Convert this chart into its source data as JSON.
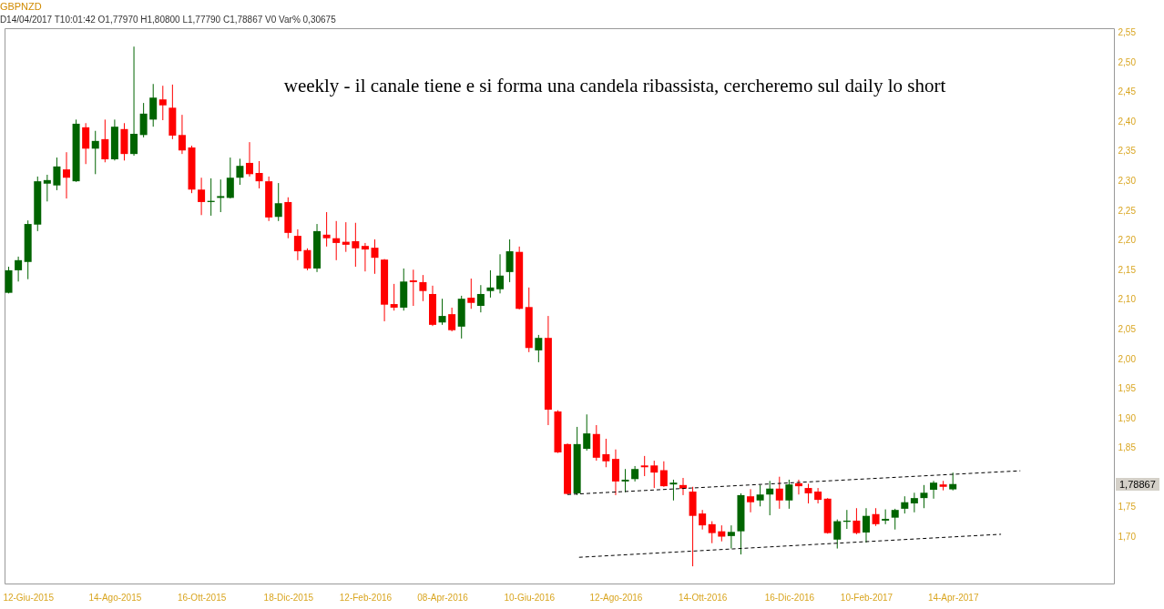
{
  "chart_data": {
    "type": "candlestick",
    "title": "GBPNZD",
    "subtitle": "D14/04/2017 T10:01:42 O1,77970 H1,80800 L1,77790 C1,78867 V0 Var% 0,30675",
    "annotations": [
      "weekly - il canale tiene e si forma una candela ribassista, cercheremo sul daily lo short",
      "1,78867"
    ],
    "x": [
      "2015-05-29",
      "2015-06-05",
      "2015-06-12",
      "2015-06-19",
      "2015-06-26",
      "2015-07-03",
      "2015-07-10",
      "2015-07-17",
      "2015-07-24",
      "2015-07-31",
      "2015-08-07",
      "2015-08-14",
      "2015-08-21",
      "2015-08-28",
      "2015-09-04",
      "2015-09-11",
      "2015-09-18",
      "2015-09-25",
      "2015-10-02",
      "2015-10-09",
      "2015-10-16",
      "2015-10-23",
      "2015-10-30",
      "2015-11-06",
      "2015-11-13",
      "2015-11-20",
      "2015-11-27",
      "2015-12-04",
      "2015-12-11",
      "2015-12-18",
      "2015-12-25",
      "2016-01-01",
      "2016-01-08",
      "2016-01-15",
      "2016-01-22",
      "2016-01-29",
      "2016-02-05",
      "2016-02-12",
      "2016-02-19",
      "2016-02-26",
      "2016-03-04",
      "2016-03-11",
      "2016-03-18",
      "2016-03-25",
      "2016-04-01",
      "2016-04-08",
      "2016-04-15",
      "2016-04-22",
      "2016-04-29",
      "2016-05-06",
      "2016-05-13",
      "2016-05-20",
      "2016-05-27",
      "2016-06-03",
      "2016-06-10",
      "2016-06-17",
      "2016-06-24",
      "2016-07-01",
      "2016-07-08",
      "2016-07-15",
      "2016-07-22",
      "2016-07-29",
      "2016-08-05",
      "2016-08-12",
      "2016-08-19",
      "2016-08-26",
      "2016-09-02",
      "2016-09-09",
      "2016-09-16",
      "2016-09-23",
      "2016-09-30",
      "2016-10-07",
      "2016-10-14",
      "2016-10-21",
      "2016-10-28",
      "2016-11-04",
      "2016-11-11",
      "2016-11-18",
      "2016-11-25",
      "2016-12-02",
      "2016-12-09",
      "2016-12-16",
      "2016-12-23",
      "2016-12-30",
      "2017-01-06",
      "2017-01-13",
      "2017-01-20",
      "2017-01-27",
      "2017-02-03",
      "2017-02-10",
      "2017-02-17",
      "2017-02-24",
      "2017-03-03",
      "2017-03-10",
      "2017-03-17",
      "2017-03-24",
      "2017-03-31",
      "2017-04-07",
      "2017-04-14"
    ],
    "ohlc": [
      [
        2.111,
        2.155,
        2.11,
        2.149
      ],
      [
        2.149,
        2.172,
        2.13,
        2.166
      ],
      [
        2.163,
        2.233,
        2.134,
        2.227
      ],
      [
        2.226,
        2.307,
        2.215,
        2.299
      ],
      [
        2.295,
        2.31,
        2.265,
        2.301
      ],
      [
        2.292,
        2.339,
        2.284,
        2.324
      ],
      [
        2.319,
        2.348,
        2.27,
        2.305
      ],
      [
        2.299,
        2.403,
        2.298,
        2.396
      ],
      [
        2.39,
        2.397,
        2.328,
        2.354
      ],
      [
        2.354,
        2.384,
        2.311,
        2.367
      ],
      [
        2.37,
        2.403,
        2.331,
        2.336
      ],
      [
        2.336,
        2.403,
        2.334,
        2.391
      ],
      [
        2.387,
        2.397,
        2.334,
        2.345
      ],
      [
        2.345,
        2.526,
        2.342,
        2.379
      ],
      [
        2.377,
        2.431,
        2.373,
        2.413
      ],
      [
        2.403,
        2.463,
        2.391,
        2.44
      ],
      [
        2.437,
        2.46,
        2.402,
        2.427
      ],
      [
        2.423,
        2.462,
        2.37,
        2.376
      ],
      [
        2.377,
        2.411,
        2.345,
        2.351
      ],
      [
        2.356,
        2.359,
        2.279,
        2.285
      ],
      [
        2.285,
        2.305,
        2.242,
        2.264
      ],
      [
        2.264,
        2.304,
        2.241,
        2.266
      ],
      [
        2.271,
        2.302,
        2.247,
        2.274
      ],
      [
        2.271,
        2.339,
        2.27,
        2.305
      ],
      [
        2.305,
        2.337,
        2.293,
        2.325
      ],
      [
        2.33,
        2.365,
        2.307,
        2.311
      ],
      [
        2.313,
        2.333,
        2.287,
        2.299
      ],
      [
        2.299,
        2.307,
        2.232,
        2.238
      ],
      [
        2.239,
        2.296,
        2.232,
        2.262
      ],
      [
        2.264,
        2.272,
        2.203,
        2.212
      ],
      [
        2.207,
        2.218,
        2.166,
        2.181
      ],
      [
        2.183,
        2.186,
        2.149,
        2.152
      ],
      [
        2.152,
        2.227,
        2.146,
        2.215
      ],
      [
        2.209,
        2.247,
        2.189,
        2.203
      ],
      [
        2.203,
        2.232,
        2.166,
        2.195
      ],
      [
        2.197,
        2.23,
        2.18,
        2.192
      ],
      [
        2.198,
        2.229,
        2.155,
        2.186
      ],
      [
        2.19,
        2.195,
        2.147,
        2.184
      ],
      [
        2.187,
        2.201,
        2.143,
        2.17
      ],
      [
        2.167,
        2.168,
        2.063,
        2.091
      ],
      [
        2.092,
        2.126,
        2.081,
        2.086
      ],
      [
        2.086,
        2.152,
        2.081,
        2.13
      ],
      [
        2.132,
        2.15,
        2.089,
        2.129
      ],
      [
        2.129,
        2.141,
        2.097,
        2.114
      ],
      [
        2.109,
        2.123,
        2.055,
        2.057
      ],
      [
        2.061,
        2.101,
        2.057,
        2.072
      ],
      [
        2.075,
        2.086,
        2.046,
        2.048
      ],
      [
        2.054,
        2.106,
        2.034,
        2.101
      ],
      [
        2.103,
        2.135,
        2.084,
        2.094
      ],
      [
        2.089,
        2.124,
        2.078,
        2.109
      ],
      [
        2.114,
        2.149,
        2.103,
        2.12
      ],
      [
        2.117,
        2.176,
        2.11,
        2.14
      ],
      [
        2.146,
        2.201,
        2.129,
        2.181
      ],
      [
        2.18,
        2.189,
        2.083,
        2.084
      ],
      [
        2.087,
        2.12,
        2.011,
        2.018
      ],
      [
        2.014,
        2.04,
        1.994,
        2.035
      ],
      [
        2.035,
        2.072,
        1.888,
        1.914
      ],
      [
        1.911,
        1.913,
        1.841,
        1.842
      ],
      [
        1.856,
        1.857,
        1.771,
        1.772
      ],
      [
        1.773,
        1.885,
        1.77,
        1.856
      ],
      [
        1.848,
        1.906,
        1.845,
        1.874
      ],
      [
        1.873,
        1.888,
        1.828,
        1.833
      ],
      [
        1.839,
        1.865,
        1.817,
        1.827
      ],
      [
        1.831,
        1.847,
        1.77,
        1.793
      ],
      [
        1.793,
        1.814,
        1.775,
        1.796
      ],
      [
        1.797,
        1.819,
        1.793,
        1.814
      ],
      [
        1.82,
        1.836,
        1.802,
        1.817
      ],
      [
        1.82,
        1.828,
        1.782,
        1.808
      ],
      [
        1.812,
        1.827,
        1.784,
        1.785
      ],
      [
        1.788,
        1.796,
        1.761,
        1.791
      ],
      [
        1.787,
        1.799,
        1.77,
        1.781
      ],
      [
        1.776,
        1.784,
        1.65,
        1.735
      ],
      [
        1.739,
        1.745,
        1.712,
        1.719
      ],
      [
        1.721,
        1.726,
        1.689,
        1.706
      ],
      [
        1.709,
        1.719,
        1.692,
        1.7
      ],
      [
        1.701,
        1.719,
        1.68,
        1.708
      ],
      [
        1.709,
        1.773,
        1.67,
        1.77
      ],
      [
        1.768,
        1.78,
        1.741,
        1.758
      ],
      [
        1.761,
        1.787,
        1.751,
        1.771
      ],
      [
        1.771,
        1.794,
        1.736,
        1.781
      ],
      [
        1.781,
        1.801,
        1.747,
        1.761
      ],
      [
        1.761,
        1.796,
        1.747,
        1.788
      ],
      [
        1.79,
        1.796,
        1.771,
        1.785
      ],
      [
        1.782,
        1.789,
        1.756,
        1.773
      ],
      [
        1.776,
        1.782,
        1.756,
        1.762
      ],
      [
        1.764,
        1.765,
        1.705,
        1.706
      ],
      [
        1.695,
        1.729,
        1.68,
        1.726
      ],
      [
        1.725,
        1.745,
        1.713,
        1.727
      ],
      [
        1.727,
        1.748,
        1.704,
        1.706
      ],
      [
        1.707,
        1.748,
        1.69,
        1.735
      ],
      [
        1.738,
        1.748,
        1.718,
        1.721
      ],
      [
        1.727,
        1.746,
        1.721,
        1.73
      ],
      [
        1.732,
        1.747,
        1.712,
        1.745
      ],
      [
        1.747,
        1.768,
        1.739,
        1.758
      ],
      [
        1.756,
        1.774,
        1.741,
        1.765
      ],
      [
        1.765,
        1.787,
        1.748,
        1.774
      ],
      [
        1.779,
        1.794,
        1.764,
        1.791
      ],
      [
        1.788,
        1.794,
        1.778,
        1.784
      ],
      [
        1.7797,
        1.808,
        1.7779,
        1.78867
      ]
    ],
    "colors": [
      "#006400",
      "#006400",
      "#006400",
      "#006400",
      "#006400",
      "#006400",
      "#ff0000",
      "#006400",
      "#ff0000",
      "#006400",
      "#ff0000",
      "#006400",
      "#ff0000",
      "#006400",
      "#006400",
      "#006400",
      "#ff0000",
      "#ff0000",
      "#ff0000",
      "#ff0000",
      "#ff0000",
      "#006400",
      "#006400",
      "#006400",
      "#006400",
      "#ff0000",
      "#ff0000",
      "#ff0000",
      "#006400",
      "#ff0000",
      "#ff0000",
      "#ff0000",
      "#006400",
      "#ff0000",
      "#ff0000",
      "#ff0000",
      "#ff0000",
      "#ff0000",
      "#ff0000",
      "#ff0000",
      "#ff0000",
      "#006400",
      "#ff0000",
      "#ff0000",
      "#ff0000",
      "#006400",
      "#ff0000",
      "#006400",
      "#ff0000",
      "#006400",
      "#006400",
      "#006400",
      "#006400",
      "#ff0000",
      "#ff0000",
      "#006400",
      "#ff0000",
      "#ff0000",
      "#ff0000",
      "#006400",
      "#006400",
      "#ff0000",
      "#ff0000",
      "#ff0000",
      "#006400",
      "#006400",
      "#ff0000",
      "#ff0000",
      "#ff0000",
      "#006400",
      "#ff0000",
      "#ff0000",
      "#ff0000",
      "#ff0000",
      "#ff0000",
      "#006400",
      "#006400",
      "#ff0000",
      "#006400",
      "#006400",
      "#ff0000",
      "#006400",
      "#ff0000",
      "#ff0000",
      "#ff0000",
      "#ff0000",
      "#006400",
      "#006400",
      "#ff0000",
      "#006400",
      "#ff0000",
      "#006400",
      "#006400",
      "#006400",
      "#006400",
      "#006400",
      "#006400",
      "#ff0000",
      "#006400"
    ],
    "series": [
      {
        "type": "line",
        "x": [
          "2016-07-08",
          "2017-06-02"
        ],
        "values": [
          1.771,
          1.811
        ],
        "color": "#000000",
        "line_style": "dashed"
      },
      {
        "type": "line",
        "x": [
          "2016-07-15",
          "2017-05-19"
        ],
        "values": [
          1.665,
          1.704
        ],
        "color": "#000000",
        "line_style": "dashed"
      }
    ],
    "xlim": [
      "2015-05-26",
      "2017-08-09"
    ],
    "xticks": [
      {
        "value": "2015-06-12",
        "label": "12-Giu-2015"
      },
      {
        "value": "2015-08-14",
        "label": "14-Ago-2015"
      },
      {
        "value": "2015-10-16",
        "label": "16-Ott-2015"
      },
      {
        "value": "2015-12-18",
        "label": "18-Dic-2015"
      },
      {
        "value": "2016-02-12",
        "label": "12-Feb-2016"
      },
      {
        "value": "2016-04-08",
        "label": "08-Apr-2016"
      },
      {
        "value": "2016-06-10",
        "label": "10-Giu-2016"
      },
      {
        "value": "2016-08-12",
        "label": "12-Ago-2016"
      },
      {
        "value": "2016-10-14",
        "label": "14-Ott-2016"
      },
      {
        "value": "2016-12-16",
        "label": "16-Dic-2016"
      },
      {
        "value": "2017-02-10",
        "label": "10-Feb-2017"
      },
      {
        "value": "2017-04-14",
        "label": "14-Apr-2017"
      }
    ],
    "ylim": [
      1.621,
      2.557
    ],
    "yticks": [
      {
        "value": 1.7,
        "label": "1,70"
      },
      {
        "value": 1.75,
        "label": "1,75"
      },
      {
        "value": 1.85,
        "label": "1,85"
      },
      {
        "value": 1.9,
        "label": "1,90"
      },
      {
        "value": 1.95,
        "label": "1,95"
      },
      {
        "value": 2.0,
        "label": "2,00"
      },
      {
        "value": 2.05,
        "label": "2,05"
      },
      {
        "value": 2.1,
        "label": "2,10"
      },
      {
        "value": 2.15,
        "label": "2,15"
      },
      {
        "value": 2.2,
        "label": "2,20"
      },
      {
        "value": 2.25,
        "label": "2,25"
      },
      {
        "value": 2.3,
        "label": "2,30"
      },
      {
        "value": 2.35,
        "label": "2,35"
      },
      {
        "value": 2.4,
        "label": "2,40"
      },
      {
        "value": 2.45,
        "label": "2,45"
      },
      {
        "value": 2.5,
        "label": "2,50"
      },
      {
        "value": 2.55,
        "label": "2,55"
      }
    ]
  }
}
